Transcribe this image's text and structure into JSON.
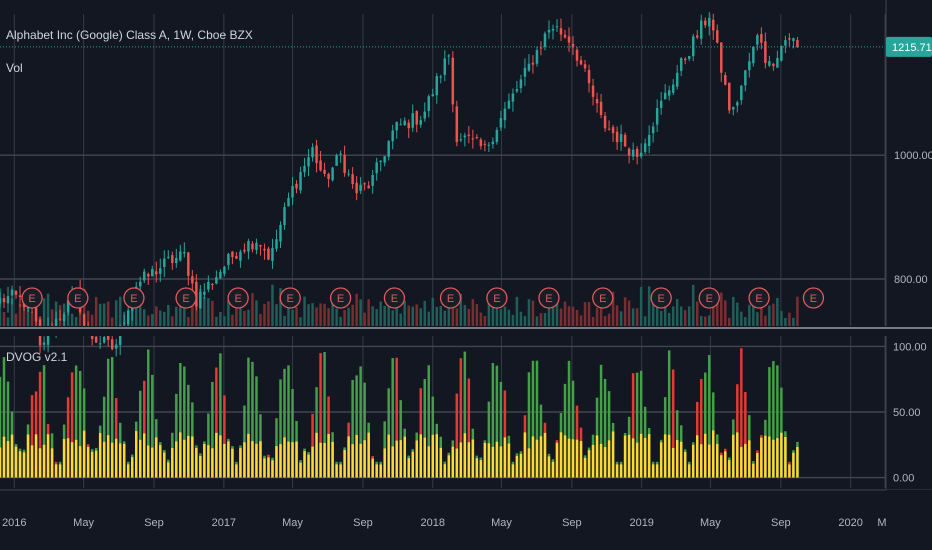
{
  "header": {
    "symbol_line": "Alphabet Inc (Google) Class A, 1W, Cboe BZX",
    "volume_label": "Vol"
  },
  "colors": {
    "background": "#131722",
    "up": "#26a69a",
    "down": "#ef5350",
    "grid": "#363a45",
    "osc_green": "#43a047",
    "osc_red": "#e53935",
    "osc_yellow": "#fdd835",
    "price_line": "#26a69a",
    "earnings": "#e05a5a"
  },
  "chart_data": [
    {
      "type": "candlestick",
      "title": "Alphabet Inc (Google) Class A, 1W, Cboe BZX",
      "x_axis": {
        "type": "date",
        "range": [
          "2015-12-07",
          "2020-03-01"
        ],
        "tick_labels": [
          "2016",
          "May",
          "Sep",
          "2017",
          "May",
          "Sep",
          "2018",
          "May",
          "Sep",
          "2019",
          "May",
          "Sep",
          "2020",
          "Ma"
        ],
        "tick_dates": [
          "2016-01-01",
          "2016-05-01",
          "2016-09-01",
          "2017-01-01",
          "2017-05-01",
          "2017-09-01",
          "2018-01-01",
          "2018-05-01",
          "2018-09-01",
          "2019-01-01",
          "2019-05-01",
          "2019-09-01",
          "2020-01-01",
          "2020-03-01"
        ]
      },
      "y_axis": {
        "scale": "log",
        "range": [
          735,
          1290
        ],
        "tick_labels": [
          "800.00",
          "1000.00"
        ],
        "tick_values": [
          800,
          1000
        ]
      },
      "last_price": {
        "value": 1215.71,
        "label": "1215.71"
      },
      "series": [
        {
          "kind": "ohlc-path",
          "anchors": [
            {
              "date": "2015-12-07",
              "close": 770
            },
            {
              "date": "2016-01-01",
              "close": 775
            },
            {
              "date": "2016-02-05",
              "close": 760
            },
            {
              "date": "2016-02-12",
              "close": 700
            },
            {
              "date": "2016-03-01",
              "close": 730
            },
            {
              "date": "2016-04-20",
              "close": 780
            },
            {
              "date": "2016-05-05",
              "close": 725
            },
            {
              "date": "2016-06-24",
              "close": 705
            },
            {
              "date": "2016-07-29",
              "close": 790
            },
            {
              "date": "2016-09-25",
              "close": 825
            },
            {
              "date": "2016-10-24",
              "close": 835
            },
            {
              "date": "2016-11-14",
              "close": 770
            },
            {
              "date": "2017-01-27",
              "close": 845
            },
            {
              "date": "2017-03-01",
              "close": 860
            },
            {
              "date": "2017-03-24",
              "close": 830
            },
            {
              "date": "2017-04-28",
              "close": 935
            },
            {
              "date": "2017-06-05",
              "close": 1010
            },
            {
              "date": "2017-06-26",
              "close": 955
            },
            {
              "date": "2017-07-24",
              "close": 1000
            },
            {
              "date": "2017-08-18",
              "close": 935
            },
            {
              "date": "2017-09-15",
              "close": 950
            },
            {
              "date": "2017-10-27",
              "close": 1050
            },
            {
              "date": "2017-12-15",
              "close": 1075
            },
            {
              "date": "2018-01-29",
              "close": 1200
            },
            {
              "date": "2018-02-09",
              "close": 1040
            },
            {
              "date": "2018-04-02",
              "close": 1010
            },
            {
              "date": "2018-06-08",
              "close": 1150
            },
            {
              "date": "2018-07-27",
              "close": 1265
            },
            {
              "date": "2018-08-31",
              "close": 1230
            },
            {
              "date": "2018-10-24",
              "close": 1060
            },
            {
              "date": "2018-12-24",
              "close": 1000
            },
            {
              "date": "2019-04-29",
              "close": 1290
            },
            {
              "date": "2019-05-31",
              "close": 1105
            },
            {
              "date": "2019-06-07",
              "close": 1070
            },
            {
              "date": "2019-07-26",
              "close": 1250
            },
            {
              "date": "2019-08-09",
              "close": 1170
            },
            {
              "date": "2019-09-13",
              "close": 1240
            },
            {
              "date": "2019-10-04",
              "close": 1215
            }
          ]
        }
      ],
      "volume": {
        "label": "Vol",
        "relative_scale": true
      },
      "earnings_markers": {
        "label": "E",
        "dates": [
          "2016-02-01",
          "2016-04-21",
          "2016-07-28",
          "2016-10-27",
          "2017-01-26",
          "2017-04-27",
          "2017-07-24",
          "2017-10-26",
          "2018-02-01",
          "2018-04-23",
          "2018-07-23",
          "2018-10-25",
          "2019-02-04",
          "2019-04-29",
          "2019-07-25",
          "2019-10-28"
        ]
      }
    },
    {
      "type": "bar",
      "title": "DVOG v2.1",
      "y_axis": {
        "range": [
          -8,
          108
        ],
        "tick_labels": [
          "100.00",
          "50.00",
          "0.00"
        ],
        "tick_values": [
          100,
          50,
          0
        ]
      },
      "series": [
        {
          "name": "",
          "kind": "oscillator-total",
          "colors": [
            "#43a047",
            "#e53935"
          ]
        },
        {
          "name": "",
          "kind": "oscillator-base",
          "color": "#fdd835"
        }
      ]
    }
  ]
}
